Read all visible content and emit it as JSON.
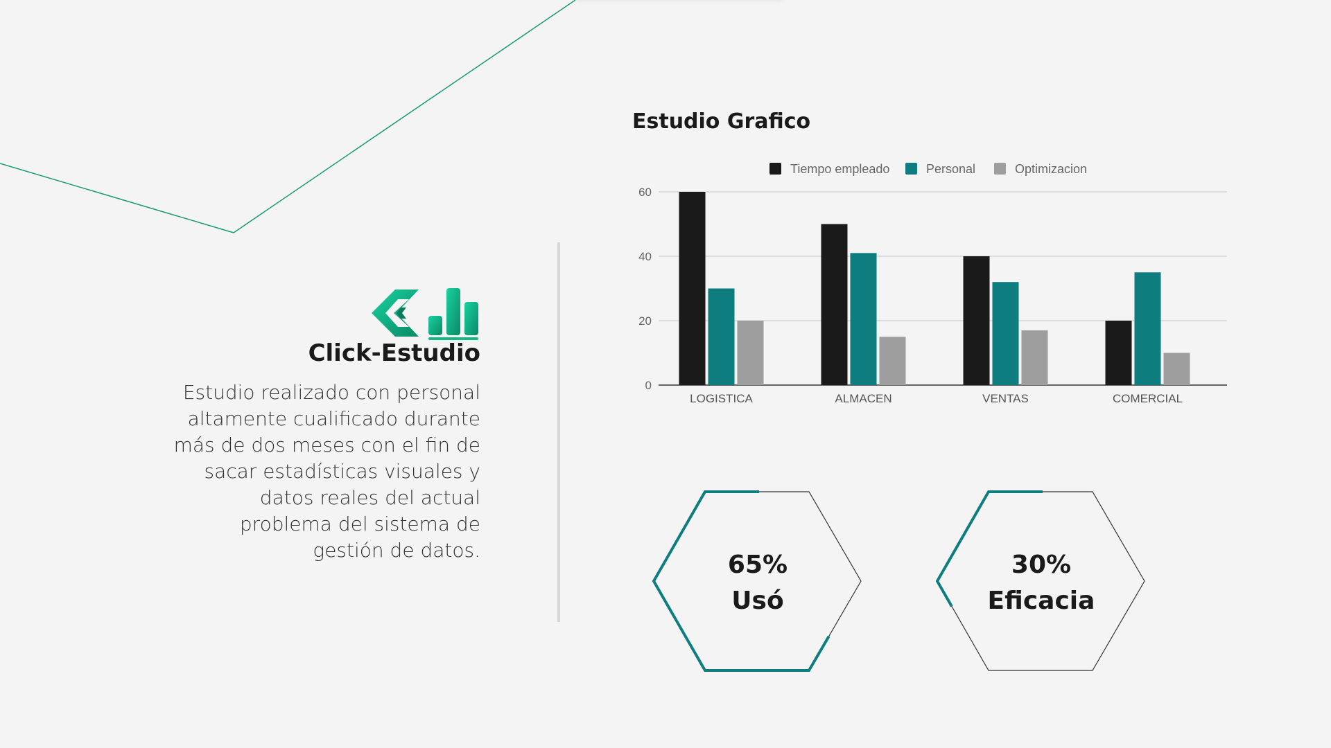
{
  "brand": {
    "name": "Click-Estudio",
    "description": "Estudio realizado con personal altamente cualificado durante más de dos meses con el fin de sacar estadísticas visuales y datos reales del actual problema del sistema de gestión de datos."
  },
  "colors": {
    "teal": "#0d7d80",
    "black": "#1a1a1a",
    "gray": "#9e9e9e",
    "green_line": "#1a9a78",
    "logo_green": "#12b886"
  },
  "chart_data": {
    "type": "bar",
    "title": "Estudio Grafico",
    "categories": [
      "LOGISTICA",
      "ALMACEN",
      "VENTAS",
      "COMERCIAL"
    ],
    "series": [
      {
        "name": "Tiempo empleado",
        "values": [
          60,
          50,
          40,
          20
        ]
      },
      {
        "name": "Personal",
        "values": [
          30,
          41,
          32,
          35
        ]
      },
      {
        "name": "Optimizacion",
        "values": [
          20,
          15,
          17,
          10
        ]
      }
    ],
    "ylim": [
      0,
      60
    ],
    "yticks": [
      0,
      20,
      40,
      60
    ],
    "legend": "top",
    "grid": true
  },
  "kpis": [
    {
      "value": "65%",
      "label": "Usó",
      "progress": 0.65
    },
    {
      "value": "30%",
      "label": "Eficacia",
      "progress": 0.3
    }
  ]
}
